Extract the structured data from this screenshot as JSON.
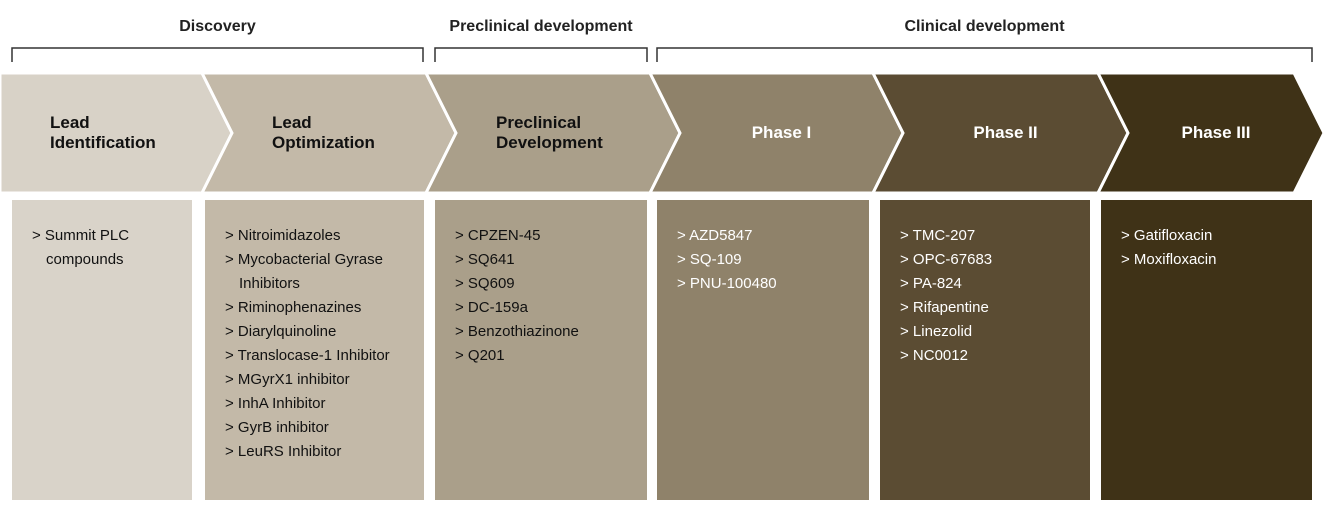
{
  "groups": [
    {
      "label": "Discovery"
    },
    {
      "label": "Preclinical development"
    },
    {
      "label": "Clinical development"
    }
  ],
  "stages": [
    {
      "label": "Lead Identification",
      "items": [
        "> Summit PLC compounds"
      ]
    },
    {
      "label": "Lead Optimization",
      "items": [
        "> Nitroimidazoles",
        "> Mycobacterial Gyrase Inhibitors",
        "> Riminophenazines",
        "> Diarylquinoline",
        "> Translocase-1 Inhibitor",
        "> MGyrX1 inhibitor",
        "> InhA Inhibitor",
        "> GyrB inhibitor",
        "> LeuRS Inhibitor"
      ]
    },
    {
      "label": "Preclinical Development",
      "items": [
        "> CPZEN-45",
        "> SQ641",
        "> SQ609",
        "> DC-159a",
        "> Benzothiazinone",
        "> Q201"
      ]
    },
    {
      "label": "Phase I",
      "items": [
        "> AZD5847",
        "> SQ-109",
        "> PNU-100480"
      ]
    },
    {
      "label": "Phase II",
      "items": [
        "> TMC-207",
        "> OPC-67683",
        "> PA-824",
        "> Rifapentine",
        "> Linezolid",
        "> NC0012"
      ]
    },
    {
      "label": "Phase III",
      "items": [
        "> Gatifloxacin",
        "> Moxifloxacin"
      ]
    }
  ]
}
